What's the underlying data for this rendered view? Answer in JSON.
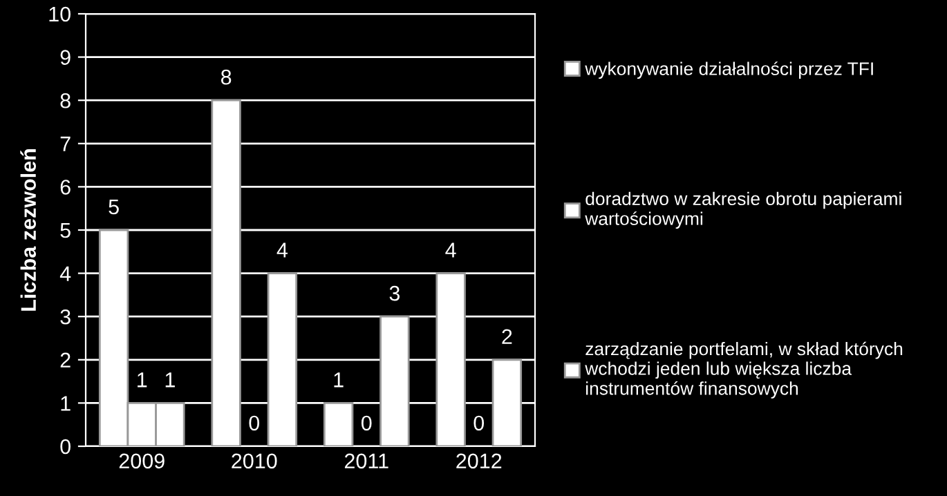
{
  "chart_data": {
    "type": "bar",
    "ylabel": "Liczba zezwoleń",
    "categories": [
      "2009",
      "2010",
      "2011",
      "2012"
    ],
    "series": [
      {
        "name": "wykonywanie działalności przez TFI",
        "color": "#ffffff",
        "values": [
          5,
          8,
          1,
          4
        ]
      },
      {
        "name": "doradztwo w zakresie obrotu papierami wartościowymi",
        "color": "#ffffff",
        "values": [
          1,
          0,
          0,
          0
        ]
      },
      {
        "name": "zarządzanie portfelami, w skład których wchodzi jeden lub większa liczba instrumentów finansowych",
        "color": "#ffffff",
        "values": [
          1,
          4,
          3,
          2
        ]
      }
    ],
    "ylim": [
      0,
      10
    ],
    "yticks": [
      0,
      1,
      2,
      3,
      4,
      5,
      6,
      7,
      8,
      9,
      10
    ],
    "grid": "y",
    "legend": "right",
    "data_labels": true
  }
}
